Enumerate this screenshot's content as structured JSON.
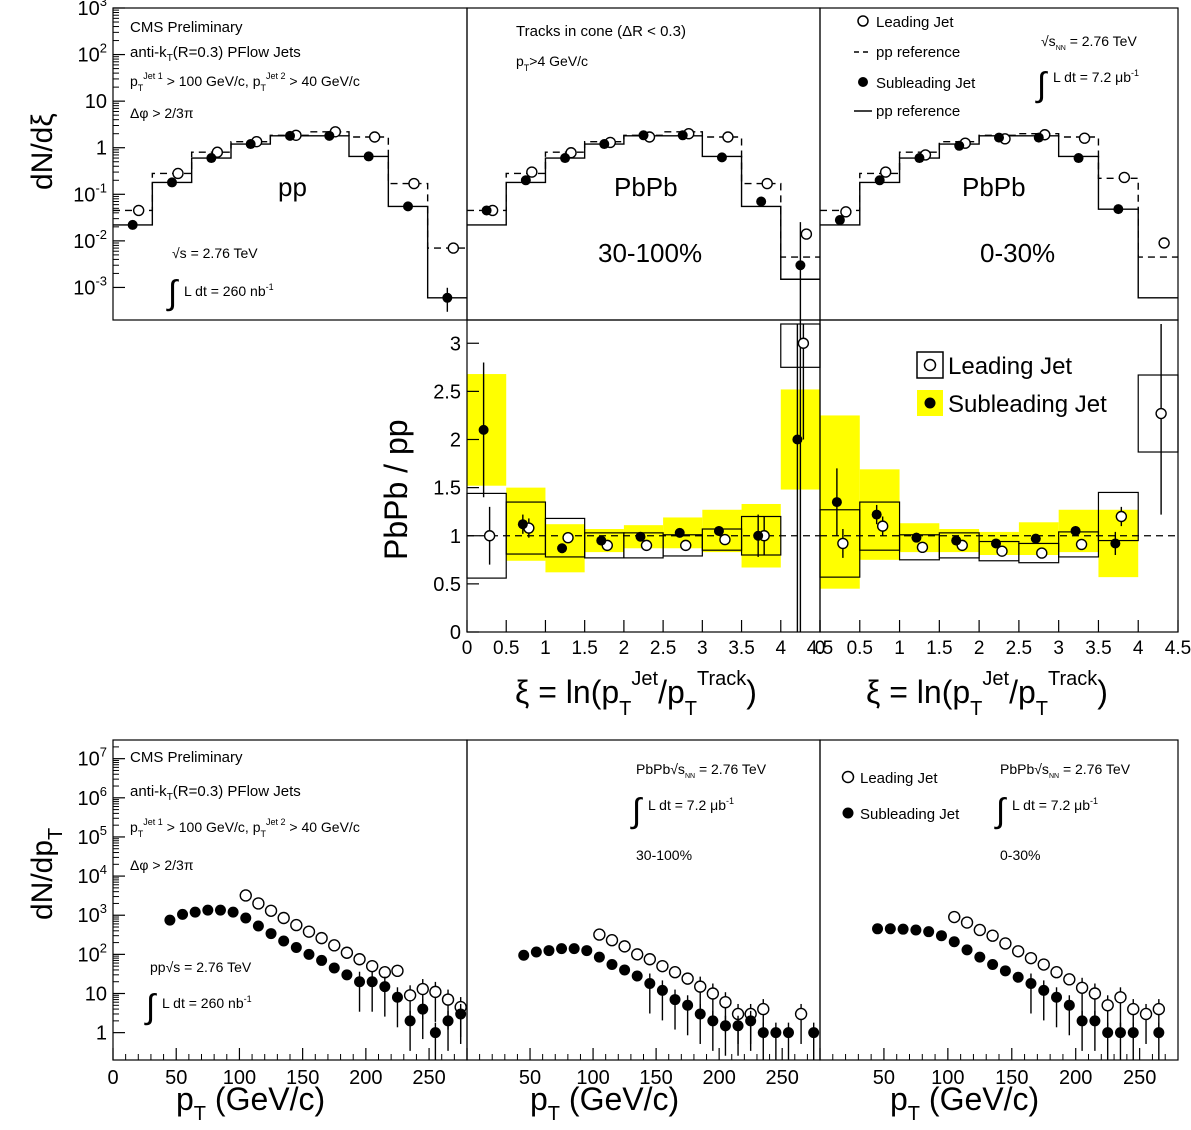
{
  "texts": {
    "cms": "CMS Preliminary",
    "algo": "anti-k_T(R=0.3) PFlow Jets",
    "cuts": "p_T^Jet 1 > 100 GeV/c, p_T^Jet 2 > 40 GeV/c",
    "dphi": "Δφ > 2/3π",
    "tracks_cone": "Tracks in cone (ΔR < 0.3)",
    "pt_cut": "p_T>4 GeV/c",
    "legend_leading": "Leading Jet",
    "legend_ppref": "pp reference",
    "legend_subleading": "Subleading Jet",
    "pp_sqrts": "√s = 2.76 TeV",
    "pp_lumi": "L dt = 260 nb⁻¹",
    "pbpb_sqrts": "√s_NN = 2.76 TeV",
    "pbpb_lumi": "L dt = 7.2 μb⁻¹",
    "label_pp": "pp",
    "label_pbpb": "PbPb",
    "cent_peripheral": "30-100%",
    "cent_central": "0-30%",
    "ratio_legend_leading": "Leading Jet",
    "ratio_legend_subleading": "Subleading Jet",
    "pt_pp_energy": "pp√s = 2.76 TeV",
    "pt_pbpb_energy": "PbPb√s_NN = 2.76 TeV"
  },
  "colors": {
    "systematic_band": "#ffff00",
    "frame": "#000000"
  },
  "chart_data": [
    {
      "type": "step-histogram",
      "panel": "pp",
      "ylabel": "dN/dξ",
      "xlim": [
        0,
        4.5
      ],
      "ylim": [
        0.0002,
        1000
      ],
      "yscale": "log",
      "bins": [
        0,
        0.5,
        1,
        1.5,
        2,
        2.5,
        3,
        3.5,
        4,
        4.5
      ],
      "series": [
        {
          "name": "Leading Jet",
          "marker": "open-circle",
          "x": [
            0.25,
            0.75,
            1.25,
            1.75,
            2.25,
            2.75,
            3.25,
            3.75,
            4.25
          ],
          "values": [
            0.045,
            0.28,
            0.8,
            1.35,
            1.85,
            2.2,
            1.7,
            0.17,
            0.007
          ]
        },
        {
          "name": "pp reference",
          "line": "dashed",
          "values": [
            0.045,
            0.28,
            0.8,
            1.35,
            1.85,
            2.2,
            1.7,
            0.17,
            0.007
          ]
        },
        {
          "name": "Subleading Jet",
          "marker": "filled-circle",
          "x": [
            0.25,
            0.75,
            1.25,
            1.75,
            2.25,
            2.75,
            3.25,
            3.75,
            4.25
          ],
          "values": [
            0.022,
            0.18,
            0.6,
            1.2,
            1.8,
            1.8,
            0.65,
            0.055,
            0.0006
          ]
        },
        {
          "name": "pp reference",
          "line": "solid",
          "values": [
            0.022,
            0.18,
            0.6,
            1.2,
            1.8,
            1.8,
            0.65,
            0.055,
            0.0006
          ]
        }
      ]
    },
    {
      "type": "step-histogram",
      "panel": "PbPb 30-100%",
      "xlim": [
        0,
        4.5
      ],
      "ylim": [
        0.0002,
        1000
      ],
      "yscale": "log",
      "series": [
        {
          "name": "Leading Jet",
          "marker": "open-circle",
          "x": [
            0.25,
            0.75,
            1.25,
            1.75,
            2.25,
            2.75,
            3.25,
            3.75,
            4.25
          ],
          "values": [
            0.045,
            0.3,
            0.78,
            1.3,
            1.7,
            2.0,
            1.7,
            0.17,
            0.014
          ]
        },
        {
          "name": "pp reference",
          "line": "dashed",
          "values": [
            0.045,
            0.28,
            0.8,
            1.35,
            1.85,
            2.2,
            1.7,
            0.17,
            0.0045
          ]
        },
        {
          "name": "Subleading Jet",
          "marker": "filled-circle",
          "x": [
            0.25,
            0.75,
            1.25,
            1.75,
            2.25,
            2.75,
            3.25,
            3.75,
            4.25
          ],
          "values": [
            0.045,
            0.2,
            0.6,
            1.2,
            1.85,
            1.85,
            0.62,
            0.07,
            0.003
          ]
        },
        {
          "name": "pp reference",
          "line": "solid",
          "values": [
            0.022,
            0.18,
            0.6,
            1.2,
            1.8,
            1.8,
            0.65,
            0.055,
            0.0015
          ]
        }
      ]
    },
    {
      "type": "step-histogram",
      "panel": "PbPb 0-30%",
      "xlim": [
        0,
        4.5
      ],
      "ylim": [
        0.0002,
        1000
      ],
      "yscale": "log",
      "series": [
        {
          "name": "Leading Jet",
          "marker": "open-circle",
          "x": [
            0.25,
            0.75,
            1.25,
            1.75,
            2.25,
            2.75,
            3.25,
            3.75,
            4.25
          ],
          "values": [
            0.042,
            0.3,
            0.7,
            1.25,
            1.55,
            1.9,
            1.6,
            0.23,
            0.009
          ]
        },
        {
          "name": "pp reference",
          "line": "dashed",
          "values": [
            0.045,
            0.28,
            0.8,
            1.35,
            1.85,
            2.0,
            1.7,
            0.22,
            0.0045
          ]
        },
        {
          "name": "Subleading Jet",
          "marker": "filled-circle",
          "x": [
            0.25,
            0.75,
            1.25,
            1.75,
            2.25,
            2.75,
            3.25,
            3.75,
            4.25
          ],
          "values": [
            0.028,
            0.2,
            0.6,
            1.1,
            1.65,
            1.65,
            0.6,
            0.048,
            null
          ]
        },
        {
          "name": "pp reference",
          "line": "solid",
          "values": [
            0.022,
            0.18,
            0.6,
            1.2,
            1.8,
            1.8,
            0.65,
            0.048,
            0.0006
          ]
        }
      ]
    },
    {
      "type": "scatter",
      "panel": "ratio 30-100%",
      "ylabel": "PbPb / pp",
      "xlabel": "ξ = ln(p_T^Jet/p_T^Track)",
      "xlim": [
        0,
        4.5
      ],
      "ylim": [
        0,
        3.2
      ],
      "reference_line": 1,
      "series": [
        {
          "name": "Leading Jet",
          "marker": "open-circle",
          "x": [
            0.25,
            0.75,
            1.25,
            1.75,
            2.25,
            2.75,
            3.25,
            3.75,
            4.25
          ],
          "values": [
            1.0,
            1.08,
            0.98,
            0.9,
            0.9,
            0.9,
            0.96,
            1.0,
            3.0
          ],
          "stat_err": [
            0.3,
            0.1,
            0.05,
            0.05,
            0.04,
            0.03,
            0.05,
            0.2,
            1.0
          ],
          "syst": [
            0.44,
            0.27,
            0.2,
            0.13,
            0.13,
            0.11,
            0.11,
            0.2,
            0.25
          ]
        },
        {
          "name": "Subleading Jet",
          "marker": "filled-circle",
          "x": [
            0.25,
            0.75,
            1.25,
            1.75,
            2.25,
            2.75,
            3.25,
            3.75,
            4.25
          ],
          "values": [
            2.1,
            1.12,
            0.87,
            0.95,
            0.99,
            1.03,
            1.05,
            1.0,
            2.0
          ],
          "stat_err": [
            0.7,
            0.1,
            0.05,
            0.04,
            0.03,
            0.03,
            0.05,
            0.22,
            2.0
          ],
          "syst": [
            0.58,
            0.38,
            0.25,
            0.12,
            0.12,
            0.16,
            0.22,
            0.33,
            0.52
          ]
        }
      ]
    },
    {
      "type": "scatter",
      "panel": "ratio 0-30%",
      "xlabel": "ξ = ln(p_T^Jet/p_T^Track)",
      "xlim": [
        0,
        4.5
      ],
      "ylim": [
        0,
        3.2
      ],
      "reference_line": 1,
      "series": [
        {
          "name": "Leading Jet",
          "marker": "open-circle",
          "x": [
            0.25,
            0.75,
            1.25,
            1.75,
            2.25,
            2.75,
            3.25,
            3.75,
            4.25
          ],
          "values": [
            0.92,
            1.1,
            0.88,
            0.9,
            0.84,
            0.82,
            0.91,
            1.2,
            2.27
          ],
          "stat_err": [
            0.15,
            0.1,
            0.05,
            0.04,
            0.03,
            0.03,
            0.05,
            0.1,
            1.05
          ],
          "syst": [
            0.35,
            0.25,
            0.13,
            0.13,
            0.1,
            0.1,
            0.13,
            0.25,
            0.4
          ]
        },
        {
          "name": "Subleading Jet",
          "marker": "filled-circle",
          "x": [
            0.25,
            0.75,
            1.25,
            1.75,
            2.25,
            2.75,
            3.25,
            3.75,
            4.25
          ],
          "values": [
            1.35,
            1.22,
            0.98,
            0.95,
            0.92,
            0.97,
            1.05,
            0.92,
            null
          ],
          "stat_err": [
            0.35,
            0.1,
            0.05,
            0.04,
            0.03,
            0.03,
            0.05,
            0.12,
            null
          ],
          "syst": [
            0.9,
            0.47,
            0.15,
            0.12,
            0.12,
            0.17,
            0.22,
            0.35,
            null
          ]
        }
      ]
    },
    {
      "type": "scatter",
      "panel": "pt pp",
      "ylabel": "dN/dp_T",
      "xlabel": "p_T (GeV/c)",
      "xlim": [
        0,
        280
      ],
      "ylim": [
        0.2,
        30000000
      ],
      "yscale": "log",
      "series": [
        {
          "name": "Leading Jet",
          "marker": "open-circle",
          "x": [
            105,
            115,
            125,
            135,
            145,
            155,
            165,
            175,
            185,
            195,
            205,
            215,
            225,
            235,
            245,
            255,
            265,
            275
          ],
          "values": [
            3200,
            2000,
            1300,
            850,
            560,
            380,
            260,
            170,
            110,
            75,
            50,
            35,
            38,
            9,
            13,
            11,
            7,
            4.5
          ]
        },
        {
          "name": "Subleading Jet",
          "marker": "filled-circle",
          "x": [
            45,
            55,
            65,
            75,
            85,
            95,
            105,
            115,
            125,
            135,
            145,
            155,
            165,
            175,
            185,
            195,
            205,
            215,
            225,
            235,
            245,
            255,
            265,
            275
          ],
          "values": [
            750,
            1050,
            1200,
            1350,
            1350,
            1200,
            850,
            530,
            340,
            220,
            150,
            100,
            70,
            45,
            30,
            20,
            20,
            15,
            8,
            2,
            4,
            1,
            2,
            3
          ]
        }
      ]
    },
    {
      "type": "scatter",
      "panel": "pt PbPb 30-100%",
      "xlabel": "p_T (GeV/c)",
      "xlim": [
        0,
        280
      ],
      "ylim": [
        0.2,
        30000000
      ],
      "yscale": "log",
      "series": [
        {
          "name": "Leading Jet",
          "marker": "open-circle",
          "x": [
            105,
            115,
            125,
            135,
            145,
            155,
            165,
            175,
            185,
            195,
            205,
            215,
            225,
            235,
            245,
            255,
            265,
            275
          ],
          "values": [
            320,
            230,
            160,
            100,
            75,
            50,
            35,
            24,
            15,
            10,
            6,
            3,
            3,
            4,
            null,
            null,
            3,
            null
          ]
        },
        {
          "name": "Subleading Jet",
          "marker": "filled-circle",
          "x": [
            45,
            55,
            65,
            75,
            85,
            95,
            105,
            115,
            125,
            135,
            145,
            155,
            165,
            175,
            185,
            195,
            205,
            215,
            225,
            235,
            245,
            255,
            265,
            275
          ],
          "values": [
            95,
            115,
            125,
            140,
            140,
            125,
            85,
            55,
            40,
            28,
            18,
            12,
            7,
            5,
            3,
            2,
            1.5,
            1.5,
            2,
            1,
            1,
            1,
            null,
            1
          ]
        }
      ]
    },
    {
      "type": "scatter",
      "panel": "pt PbPb 0-30%",
      "xlabel": "p_T (GeV/c)",
      "xlim": [
        0,
        280
      ],
      "ylim": [
        0.2,
        30000000
      ],
      "yscale": "log",
      "series": [
        {
          "name": "Leading Jet",
          "marker": "open-circle",
          "x": [
            105,
            115,
            125,
            135,
            145,
            155,
            165,
            175,
            185,
            195,
            205,
            215,
            225,
            235,
            245,
            255,
            265,
            275
          ],
          "values": [
            900,
            650,
            420,
            300,
            190,
            120,
            80,
            55,
            35,
            23,
            14,
            10,
            5,
            8,
            4,
            3,
            4,
            null
          ]
        },
        {
          "name": "Subleading Jet",
          "marker": "filled-circle",
          "x": [
            45,
            55,
            65,
            75,
            85,
            95,
            105,
            115,
            125,
            135,
            145,
            155,
            165,
            175,
            185,
            195,
            205,
            215,
            225,
            235,
            245,
            255,
            265,
            275
          ],
          "values": [
            450,
            450,
            440,
            420,
            380,
            300,
            210,
            130,
            85,
            55,
            38,
            26,
            18,
            12,
            8,
            5,
            2,
            2,
            1,
            1,
            1,
            null,
            1,
            null
          ]
        }
      ]
    }
  ]
}
